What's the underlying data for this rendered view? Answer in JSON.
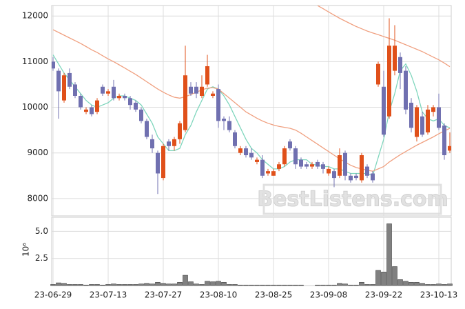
{
  "chart_data": {
    "type": "candlestick",
    "watermark": "BestListens.com",
    "categories": [
      "23-06-29",
      null,
      null,
      null,
      null,
      null,
      null,
      null,
      null,
      null,
      "23-07-13",
      null,
      null,
      null,
      null,
      null,
      null,
      null,
      null,
      null,
      "23-07-27",
      null,
      null,
      null,
      null,
      null,
      null,
      null,
      null,
      null,
      "23-08-10",
      null,
      null,
      null,
      null,
      null,
      null,
      null,
      null,
      null,
      "23-08-25",
      null,
      null,
      null,
      null,
      null,
      null,
      null,
      null,
      null,
      "23-09-08",
      null,
      null,
      null,
      null,
      null,
      null,
      null,
      null,
      null,
      "23-09-22",
      null,
      null,
      null,
      null,
      null,
      null,
      null,
      null,
      null,
      "23-10-13",
      null,
      null
    ],
    "open": [
      11000,
      10800,
      10150,
      10750,
      10500,
      10250,
      9900,
      10000,
      9900,
      10450,
      10300,
      10450,
      10200,
      10250,
      10200,
      10100,
      9950,
      9700,
      9300,
      9000,
      8450,
      9250,
      9150,
      9300,
      9500,
      10450,
      10450,
      10250,
      10500,
      10250,
      10400,
      9750,
      9700,
      9450,
      9000,
      9100,
      9000,
      8800,
      8850,
      8550,
      8500,
      8650,
      8750,
      9250,
      9100,
      8850,
      8750,
      8700,
      8800,
      8750,
      8550,
      8600,
      8500,
      9000,
      8500,
      8500,
      8400,
      8700,
      8550,
      10500,
      10450,
      9800,
      10800,
      11100,
      10800,
      10100,
      9350,
      9800,
      9450,
      9900,
      10000,
      9600,
      9050
    ],
    "high": [
      11100,
      10850,
      10750,
      10850,
      10550,
      10300,
      10000,
      10050,
      10200,
      10500,
      10400,
      10600,
      10300,
      10300,
      10250,
      10150,
      10000,
      9750,
      9400,
      9050,
      9200,
      9300,
      9350,
      9700,
      11350,
      10550,
      10550,
      10700,
      11150,
      10350,
      10500,
      9800,
      9800,
      9500,
      9150,
      9150,
      9100,
      8900,
      8950,
      8650,
      8650,
      8800,
      9150,
      9300,
      9150,
      8900,
      8800,
      8800,
      8850,
      8800,
      8700,
      8650,
      9100,
      9050,
      8550,
      8550,
      9000,
      8750,
      8600,
      11000,
      10800,
      11950,
      11800,
      11200,
      10900,
      10200,
      10050,
      9900,
      10050,
      10050,
      10300,
      9650,
      9450
    ],
    "low": [
      10800,
      9750,
      10100,
      10400,
      10200,
      9950,
      9850,
      9800,
      9850,
      10250,
      10250,
      10150,
      10150,
      10150,
      9950,
      9900,
      9650,
      9300,
      9000,
      8100,
      8400,
      9050,
      9050,
      9200,
      9450,
      10250,
      10200,
      10200,
      10450,
      10200,
      9550,
      9500,
      9450,
      9100,
      8950,
      8900,
      8850,
      8750,
      8450,
      8500,
      8500,
      8600,
      8700,
      9050,
      8650,
      8650,
      8650,
      8650,
      8650,
      8550,
      8500,
      8250,
      8450,
      8400,
      8350,
      8400,
      8350,
      8450,
      8350,
      10450,
      9350,
      9750,
      10700,
      10400,
      9850,
      9450,
      9250,
      9350,
      9400,
      9800,
      9500,
      8850,
      9000
    ],
    "close": [
      10850,
      10350,
      10700,
      10450,
      10250,
      10000,
      9950,
      9850,
      10150,
      10300,
      10350,
      10200,
      10250,
      10200,
      10050,
      9950,
      9700,
      9350,
      9100,
      8550,
      9150,
      9150,
      9300,
      9650,
      10700,
      10300,
      10300,
      10450,
      10900,
      10300,
      9700,
      9700,
      9500,
      9150,
      9100,
      8950,
      8900,
      8850,
      8500,
      8600,
      8600,
      8750,
      9100,
      9100,
      8750,
      8700,
      8700,
      8750,
      8700,
      8650,
      8650,
      8450,
      8950,
      8500,
      8400,
      8450,
      8950,
      8500,
      8400,
      10950,
      9400,
      11350,
      11350,
      10750,
      9950,
      9550,
      10000,
      9400,
      9950,
      10000,
      9550,
      8950,
      9150
    ],
    "up_color": "#e0501a",
    "down_color": "#7070b0",
    "lines": [
      {
        "color": "#7fd6bd",
        "values": [
          11150,
          10950,
          10750,
          10600,
          10450,
          10300,
          10150,
          10050,
          10000,
          10050,
          10100,
          10200,
          10250,
          10250,
          10200,
          10150,
          10050,
          9850,
          9650,
          9350,
          9200,
          9050,
          9050,
          9100,
          9400,
          9600,
          9900,
          10150,
          10400,
          10450,
          10400,
          10250,
          10050,
          9800,
          9550,
          9300,
          9100,
          9000,
          8850,
          8750,
          8650,
          8650,
          8700,
          8800,
          8850,
          8850,
          8850,
          8750,
          8730,
          8700,
          8700,
          8650,
          8650,
          8600,
          8550,
          8550,
          8550,
          8550,
          8500,
          8900,
          9300,
          9900,
          10300,
          10800,
          10950,
          10700,
          10350,
          9900,
          9750,
          9700,
          9750,
          9600,
          9550
        ]
      },
      {
        "color": "#f0a080",
        "values": [
          11700,
          11640,
          11580,
          11520,
          11460,
          11400,
          11330,
          11260,
          11200,
          11130,
          11060,
          11000,
          10930,
          10860,
          10790,
          10720,
          10640,
          10560,
          10480,
          10400,
          10330,
          10270,
          10220,
          10200,
          10230,
          10280,
          10330,
          10380,
          10420,
          10430,
          10400,
          10300,
          10200,
          10100,
          10000,
          9900,
          9830,
          9760,
          9700,
          9650,
          9610,
          9580,
          9560,
          9540,
          9500,
          9430,
          9350,
          9270,
          9190,
          9110,
          9030,
          8950,
          8870,
          8800,
          8730,
          8680,
          8650,
          8620,
          8600,
          8650,
          8700,
          8800,
          8880,
          8960,
          9030,
          9100,
          9170,
          9230,
          9290,
          9350,
          9420,
          9480,
          9540
        ]
      },
      {
        "color": "#f0a080",
        "values": [
          null,
          null,
          null,
          null,
          null,
          null,
          null,
          null,
          null,
          null,
          null,
          null,
          null,
          null,
          null,
          null,
          null,
          null,
          null,
          null,
          null,
          null,
          null,
          null,
          null,
          null,
          null,
          null,
          null,
          null,
          null,
          null,
          null,
          null,
          null,
          null,
          null,
          null,
          null,
          null,
          null,
          null,
          null,
          null,
          null,
          null,
          null,
          null,
          12230,
          12160,
          12090,
          12020,
          11950,
          11890,
          11830,
          11770,
          11720,
          11670,
          11630,
          11590,
          11550,
          11510,
          11470,
          11420,
          11370,
          11320,
          11270,
          11220,
          11160,
          11100,
          11040,
          10970,
          10890
        ]
      }
    ],
    "ylim": [
      7620,
      12230
    ],
    "yticks": [
      8000,
      9000,
      10000,
      11000,
      12000
    ],
    "volume": [
      0.1,
      0.25,
      0.2,
      0.1,
      0.1,
      0.1,
      0.05,
      0.1,
      0.1,
      0.05,
      0.1,
      0.15,
      0.1,
      0.1,
      0.1,
      0.1,
      0.15,
      0.2,
      0.15,
      0.3,
      0.2,
      0.15,
      0.15,
      0.3,
      0.95,
      0.35,
      0.15,
      0.1,
      0.4,
      0.35,
      0.4,
      0.3,
      0.1,
      0.1,
      0.05,
      0.05,
      0.05,
      0.05,
      0.05,
      0.05,
      0.05,
      0.05,
      0.05,
      0.05,
      0.05,
      0.05,
      0,
      0,
      0.05,
      0.05,
      0.05,
      0.05,
      0.2,
      0.15,
      0.05,
      0.05,
      0.3,
      0.1,
      0.1,
      1.4,
      1.25,
      5.7,
      1.75,
      0.55,
      0.4,
      0.3,
      0.3,
      0.2,
      0.1,
      0.1,
      0.15,
      0.1,
      0.15
    ],
    "volume_color": "#808080",
    "y2label": "10⁶",
    "y2lim": [
      0,
      6.3
    ],
    "y2ticks": [
      2.5,
      {
        "value": 5,
        "label": "5.0"
      }
    ],
    "grid": true
  }
}
